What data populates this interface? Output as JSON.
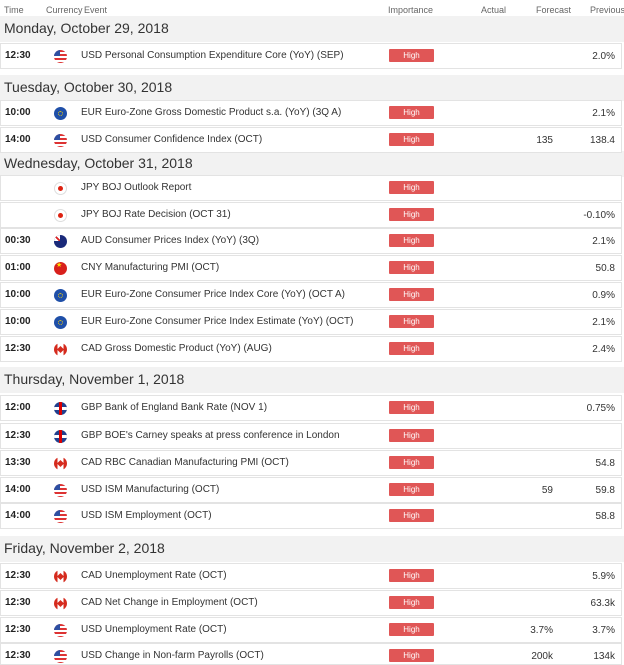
{
  "header": {
    "time": "Time",
    "currency": "Currency",
    "event": "Event",
    "importance": "Importance",
    "actual": "Actual",
    "forecast": "Forecast",
    "previous": "Previous"
  },
  "days": [
    {
      "date": "Monday, October 29, 2018"
    },
    {
      "date": "Tuesday, October 30, 2018"
    },
    {
      "date": "Wednesday, October 31, 2018"
    },
    {
      "date": "Thursday, November 1, 2018"
    },
    {
      "date": "Friday, November 2, 2018"
    }
  ],
  "importance_label": "High",
  "events": [
    {
      "time": "12:30",
      "flag": "us-flag-icon",
      "event": "USD Personal Consumption Expenditure Core (YoY) (SEP)",
      "forecast": "",
      "previous": "2.0%"
    },
    {
      "time": "10:00",
      "flag": "eu-flag-icon",
      "event": "EUR Euro-Zone Gross Domestic Product s.a. (YoY) (3Q A)",
      "forecast": "",
      "previous": "2.1%"
    },
    {
      "time": "14:00",
      "flag": "us-flag-icon",
      "event": "USD Consumer Confidence Index (OCT)",
      "forecast": "135",
      "previous": "138.4"
    },
    {
      "time": "",
      "flag": "jp-flag-icon",
      "event": "JPY BOJ Outlook Report",
      "forecast": "",
      "previous": ""
    },
    {
      "time": "",
      "flag": "jp-flag-icon",
      "event": "JPY BOJ Rate Decision (OCT 31)",
      "forecast": "",
      "previous": "-0.10%"
    },
    {
      "time": "00:30",
      "flag": "au-flag-icon",
      "event": "AUD Consumer Prices Index (YoY) (3Q)",
      "forecast": "",
      "previous": "2.1%"
    },
    {
      "time": "01:00",
      "flag": "cn-flag-icon",
      "event": "CNY Manufacturing PMI (OCT)",
      "forecast": "",
      "previous": "50.8"
    },
    {
      "time": "10:00",
      "flag": "eu-flag-icon",
      "event": "EUR Euro-Zone Consumer Price Index Core (YoY) (OCT A)",
      "forecast": "",
      "previous": "0.9%"
    },
    {
      "time": "10:00",
      "flag": "eu-flag-icon",
      "event": "EUR Euro-Zone Consumer Price Index Estimate (YoY) (OCT)",
      "forecast": "",
      "previous": "2.1%"
    },
    {
      "time": "12:30",
      "flag": "ca-flag-icon",
      "event": "CAD Gross Domestic Product (YoY) (AUG)",
      "forecast": "",
      "previous": "2.4%"
    },
    {
      "time": "12:00",
      "flag": "gb-flag-icon",
      "event": "GBP Bank of England Bank Rate (NOV 1)",
      "forecast": "",
      "previous": "0.75%"
    },
    {
      "time": "12:30",
      "flag": "gb-flag-icon",
      "event": "GBP BOE's Carney speaks at press conference in London",
      "forecast": "",
      "previous": ""
    },
    {
      "time": "13:30",
      "flag": "ca-flag-icon",
      "event": "CAD RBC Canadian Manufacturing PMI (OCT)",
      "forecast": "",
      "previous": "54.8"
    },
    {
      "time": "14:00",
      "flag": "us-flag-icon",
      "event": "USD ISM Manufacturing (OCT)",
      "forecast": "59",
      "previous": "59.8"
    },
    {
      "time": "14:00",
      "flag": "us-flag-icon",
      "event": "USD ISM Employment (OCT)",
      "forecast": "",
      "previous": "58.8"
    },
    {
      "time": "12:30",
      "flag": "ca-flag-icon",
      "event": "CAD Unemployment Rate (OCT)",
      "forecast": "",
      "previous": "5.9%"
    },
    {
      "time": "12:30",
      "flag": "ca-flag-icon",
      "event": "CAD Net Change in Employment (OCT)",
      "forecast": "",
      "previous": "63.3k"
    },
    {
      "time": "12:30",
      "flag": "us-flag-icon",
      "event": "USD Unemployment Rate (OCT)",
      "forecast": "3.7%",
      "previous": "3.7%"
    },
    {
      "time": "12:30",
      "flag": "us-flag-icon",
      "event": "USD Change in Non-farm Payrolls (OCT)",
      "forecast": "200k",
      "previous": "134k"
    }
  ]
}
